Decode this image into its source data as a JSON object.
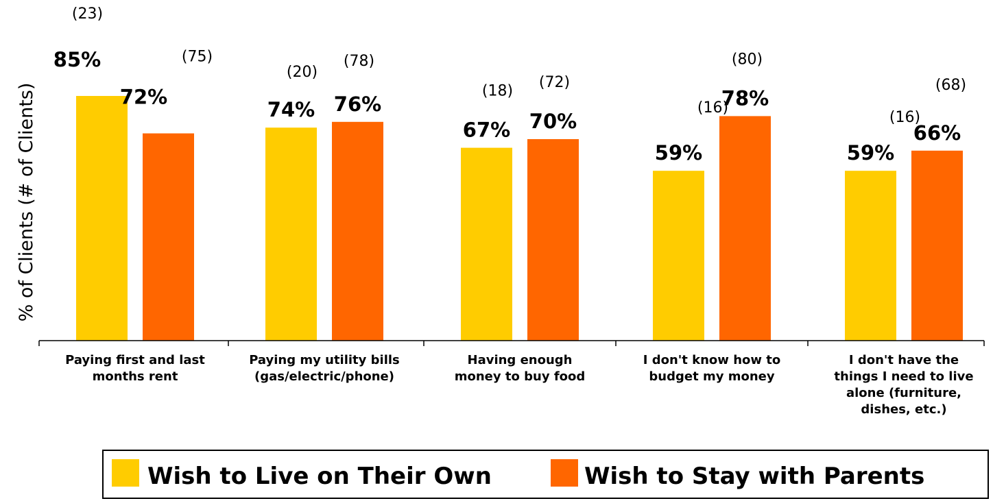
{
  "chart_data": {
    "type": "bar",
    "ylabel": "% of Clients (# of Clients)",
    "ylim": [
      0,
      100
    ],
    "categories": [
      [
        "Paying first and last",
        "months rent"
      ],
      [
        "Paying my utility bills",
        "(gas/electric/phone)"
      ],
      [
        "Having enough",
        "money to buy food"
      ],
      [
        "I don't know how to",
        "budget my money"
      ],
      [
        "I don't have the",
        "things I need to live",
        "alone (furniture,",
        "dishes, etc.)"
      ]
    ],
    "series": [
      {
        "name": "Wish to Live on Their Own",
        "color": "#FFCC00",
        "values": [
          85,
          74,
          67,
          59,
          59
        ],
        "labels": [
          "85%",
          "74%",
          "67%",
          "59%",
          "59%"
        ],
        "counts": [
          "(23)",
          "(20)",
          "(18)",
          "(16)",
          "(16)"
        ]
      },
      {
        "name": "Wish to Stay with Parents",
        "color": "#FF6600",
        "values": [
          72,
          76,
          70,
          78,
          66
        ],
        "labels": [
          "72%",
          "76%",
          "70%",
          "78%",
          "66%"
        ],
        "counts": [
          "(75)",
          "(78)",
          "(72)",
          "(80)",
          "(68)"
        ]
      }
    ],
    "grid": false,
    "legend": "bottom"
  }
}
